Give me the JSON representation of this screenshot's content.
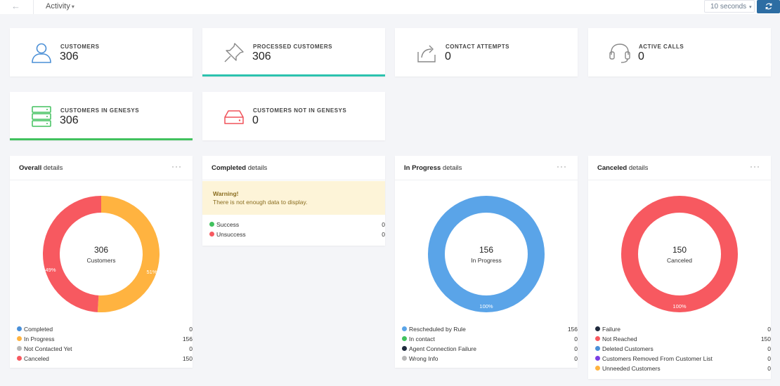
{
  "topbar": {
    "back_icon": "arrow-left-icon",
    "activity_label": "Activity",
    "interval_label": "10 seconds",
    "refresh_icon": "refresh-icon",
    "accent": "#2d6da3"
  },
  "stats": {
    "customers": {
      "label": "CUSTOMERS",
      "value": "306",
      "icon": "user-icon",
      "color": "#4a8fd6"
    },
    "processed": {
      "label": "PROCESSED CUSTOMERS",
      "value": "306",
      "icon": "pin-icon",
      "color": "#888888"
    },
    "contact_attempts": {
      "label": "CONTACT ATTEMPTS",
      "value": "0",
      "icon": "share-icon",
      "color": "#888888"
    },
    "active_calls": {
      "label": "ACTIVE CALLS",
      "value": "0",
      "icon": "headset-icon",
      "color": "#888888"
    },
    "in_genesys": {
      "label": "CUSTOMERS IN GENESYS",
      "value": "306",
      "icon": "server-icon",
      "color": "#41c15e"
    },
    "not_in_genesys": {
      "label": "CUSTOMERS NOT IN GENESYS",
      "value": "0",
      "icon": "drive-icon",
      "color": "#f0525a"
    }
  },
  "panels": {
    "overall": {
      "title_bold": "Overall",
      "title_rest": " details",
      "center_value": "306",
      "center_label": "Customers",
      "slices": [
        {
          "name": "In Progress",
          "value": 156,
          "pct_label": "51%",
          "color": "#ffb340"
        },
        {
          "name": "Canceled",
          "value": 150,
          "pct_label": "49%",
          "color": "#f75960"
        }
      ],
      "legend": [
        {
          "name": "Completed",
          "value": "0",
          "color": "#4a90d9"
        },
        {
          "name": "In Progress",
          "value": "156",
          "color": "#ffb340"
        },
        {
          "name": "Not Contacted Yet",
          "value": "0",
          "color": "#b8b8b8"
        },
        {
          "name": "Canceled",
          "value": "150",
          "color": "#f75960"
        }
      ]
    },
    "completed": {
      "title_bold": "Completed",
      "title_rest": " details",
      "warning_title": "Warning!",
      "warning_text": "There is not enough data to display.",
      "legend": [
        {
          "name": "Success",
          "value": "0",
          "color": "#41c15e"
        },
        {
          "name": "Unsuccess",
          "value": "0",
          "color": "#f75960"
        }
      ]
    },
    "in_progress": {
      "title_bold": "In Progress",
      "title_rest": " details",
      "center_value": "156",
      "center_label": "In Progress",
      "pct_label": "100%",
      "color": "#5aa4e8",
      "legend": [
        {
          "name": "Rescheduled by Rule",
          "value": "156",
          "color": "#5aa4e8"
        },
        {
          "name": "In contact",
          "value": "0",
          "color": "#41c15e"
        },
        {
          "name": "Agent Connection Failure",
          "value": "0",
          "color": "#1f2a3d"
        },
        {
          "name": "Wrong Info",
          "value": "0",
          "color": "#b8b8b8"
        }
      ]
    },
    "canceled": {
      "title_bold": "Canceled",
      "title_rest": " details",
      "center_value": "150",
      "center_label": "Canceled",
      "pct_label": "100%",
      "color": "#f75960",
      "legend": [
        {
          "name": "Failure",
          "value": "0",
          "color": "#1f2a3d"
        },
        {
          "name": "Not Reached",
          "value": "150",
          "color": "#f75960"
        },
        {
          "name": "Deleted Customers",
          "value": "0",
          "color": "#4a90d9"
        },
        {
          "name": "Customers Removed From Customer List",
          "value": "0",
          "color": "#7b3fe4"
        },
        {
          "name": "Unneeded Customers",
          "value": "0",
          "color": "#ffb340"
        }
      ]
    }
  }
}
